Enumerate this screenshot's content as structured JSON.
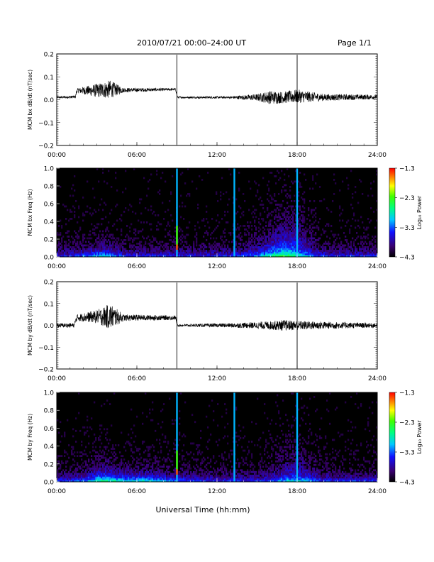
{
  "header": {
    "title": "2010/07/21  00:00–24:00 UT",
    "page": "Page 1/1"
  },
  "chart_data": [
    {
      "type": "line",
      "ylabel": "MCM bx dB/dt (nT/sec)",
      "xlim": [
        0,
        24
      ],
      "ylim": [
        -0.2,
        0.2
      ],
      "x_ticks": [
        "00:00",
        "06:00",
        "12:00",
        "18:00",
        "24:00"
      ],
      "y_ticks": [
        "−0.2",
        "−0.1",
        "0.0",
        "0.1",
        "0.2"
      ],
      "spikes_at_hours": [
        9.0,
        18.0
      ],
      "envelope": [
        {
          "x": 0.0,
          "y": 0.01,
          "amp": 0.005
        },
        {
          "x": 1.4,
          "y": 0.012,
          "amp": 0.006
        },
        {
          "x": 1.5,
          "y": 0.04,
          "amp": 0.01
        },
        {
          "x": 3.0,
          "y": 0.04,
          "amp": 0.03
        },
        {
          "x": 4.0,
          "y": 0.045,
          "amp": 0.04
        },
        {
          "x": 5.0,
          "y": 0.042,
          "amp": 0.01
        },
        {
          "x": 8.9,
          "y": 0.045,
          "amp": 0.005
        },
        {
          "x": 9.05,
          "y": 0.01,
          "amp": 0.004
        },
        {
          "x": 13.0,
          "y": 0.01,
          "amp": 0.005
        },
        {
          "x": 15.0,
          "y": 0.01,
          "amp": 0.015
        },
        {
          "x": 16.0,
          "y": 0.01,
          "amp": 0.03
        },
        {
          "x": 17.0,
          "y": 0.01,
          "amp": 0.025
        },
        {
          "x": 18.0,
          "y": 0.015,
          "amp": 0.03
        },
        {
          "x": 20.0,
          "y": 0.01,
          "amp": 0.015
        },
        {
          "x": 24.0,
          "y": 0.012,
          "amp": 0.01
        }
      ]
    },
    {
      "type": "heatmap",
      "ylabel": "MCM bx Freq (Hz)",
      "xlim": [
        0,
        24
      ],
      "ylim": [
        0,
        1.0
      ],
      "x_ticks": [
        "00:00",
        "06:00",
        "12:00",
        "18:00",
        "24:00"
      ],
      "y_ticks": [
        "0.0",
        "0.2",
        "0.4",
        "0.6",
        "0.8",
        "1.0"
      ],
      "colorbar": {
        "label": "Log₁₀ Power",
        "ticks": [
          "−1.3",
          "−2.3",
          "−3.3",
          "−4.3"
        ],
        "range": [
          -4.3,
          -1.3
        ]
      },
      "vertical_lines_at_hours": [
        9.0,
        13.3,
        18.0
      ],
      "activity_bursts": [
        {
          "x": 3.4,
          "w": 1.2,
          "f": 0.1
        },
        {
          "x": 17.5,
          "w": 1.5,
          "f": 0.35
        },
        {
          "x": 16.5,
          "w": 2.0,
          "f": 0.2
        }
      ]
    },
    {
      "type": "line",
      "ylabel": "MCM by dB/dt (nT/sec)",
      "xlim": [
        0,
        24
      ],
      "ylim": [
        -0.2,
        0.2
      ],
      "x_ticks": [
        "00:00",
        "06:00",
        "12:00",
        "18:00",
        "24:00"
      ],
      "y_ticks": [
        "−0.2",
        "−0.1",
        "0.0",
        "0.1",
        "0.2"
      ],
      "spikes_at_hours": [
        9.0,
        18.0
      ],
      "envelope": [
        {
          "x": 0.0,
          "y": 0.0,
          "amp": 0.01
        },
        {
          "x": 1.3,
          "y": 0.0,
          "amp": 0.01
        },
        {
          "x": 1.5,
          "y": 0.035,
          "amp": 0.015
        },
        {
          "x": 3.0,
          "y": 0.04,
          "amp": 0.03
        },
        {
          "x": 4.0,
          "y": 0.04,
          "amp": 0.06
        },
        {
          "x": 5.0,
          "y": 0.035,
          "amp": 0.015
        },
        {
          "x": 8.9,
          "y": 0.035,
          "amp": 0.01
        },
        {
          "x": 9.05,
          "y": 0.0,
          "amp": 0.005
        },
        {
          "x": 13.0,
          "y": 0.0,
          "amp": 0.01
        },
        {
          "x": 15.0,
          "y": 0.0,
          "amp": 0.015
        },
        {
          "x": 17.0,
          "y": 0.0,
          "amp": 0.025
        },
        {
          "x": 18.5,
          "y": 0.0,
          "amp": 0.02
        },
        {
          "x": 24.0,
          "y": 0.0,
          "amp": 0.01
        }
      ]
    },
    {
      "type": "heatmap",
      "ylabel": "MCM by Freq (Hz)",
      "xlim": [
        0,
        24
      ],
      "ylim": [
        0,
        1.0
      ],
      "x_ticks": [
        "00:00",
        "06:00",
        "12:00",
        "18:00",
        "24:00"
      ],
      "y_ticks": [
        "0.0",
        "0.2",
        "0.4",
        "0.6",
        "0.8",
        "1.0"
      ],
      "xlabel": "Universal Time (hh:mm)",
      "colorbar": {
        "label": "Log₁₀ Power",
        "ticks": [
          "−1.3",
          "−2.3",
          "−3.3",
          "−4.3"
        ],
        "range": [
          -4.3,
          -1.3
        ]
      },
      "vertical_lines_at_hours": [
        9.0,
        13.3,
        18.0
      ],
      "activity_bursts": [
        {
          "x": 3.4,
          "w": 1.2,
          "f": 0.15
        },
        {
          "x": 17.8,
          "w": 1.5,
          "f": 0.25
        },
        {
          "x": 6.0,
          "w": 3.0,
          "f": 0.1
        }
      ]
    }
  ]
}
